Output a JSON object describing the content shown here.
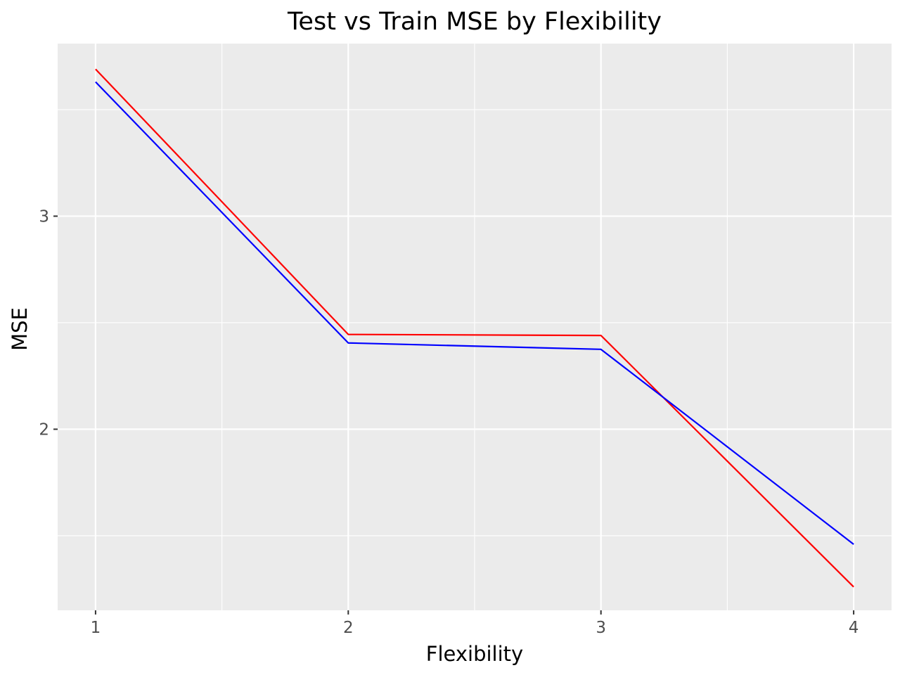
{
  "chart_data": {
    "type": "line",
    "title": "Test vs Train MSE by Flexibility",
    "xlabel": "Flexibility",
    "ylabel": "MSE",
    "x": [
      1,
      2,
      3,
      4
    ],
    "xticks": [
      1,
      2,
      3,
      4
    ],
    "xlim": [
      0.85,
      4.15
    ],
    "yticks": [
      2,
      3
    ],
    "ylim": [
      1.15,
      3.81
    ],
    "grid": true,
    "legend": "none",
    "background": "#EBEBEB",
    "gridline_color": "#FFFFFF",
    "series": [
      {
        "values": [
          3.69,
          2.445,
          2.44,
          1.26
        ],
        "color": "#FF0000"
      },
      {
        "values": [
          3.63,
          2.405,
          2.375,
          1.46
        ],
        "color": "#0000FF"
      }
    ]
  }
}
